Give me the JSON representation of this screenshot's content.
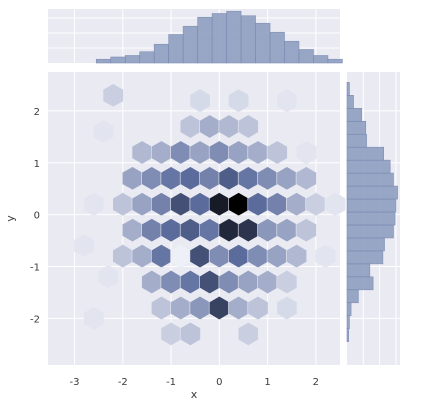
{
  "chart_data": {
    "type": "hexbin-jointplot",
    "title": "",
    "xlabel": "x",
    "ylabel": "y",
    "x_ticks": [
      -3,
      -2,
      -1,
      0,
      1,
      2
    ],
    "y_ticks": [
      -2,
      -1,
      0,
      1,
      2
    ],
    "xlim": [
      -3.55,
      2.5
    ],
    "ylim": [
      -2.9,
      2.75
    ],
    "grid": true,
    "background": "#eaeaf2",
    "colors": {
      "grid": "#ffffff",
      "low": "#eef0f7",
      "high": "#000000",
      "mid": "#5a6b9c",
      "histogram": "#8d9fc0",
      "histogram_edge": "#7586b0"
    },
    "hexbin": {
      "gridsize_x": 21,
      "counts": [
        {
          "x": -2.2,
          "y": 2.3,
          "c": 0.15
        },
        {
          "x": -2.4,
          "y": 1.6,
          "c": 0.05
        },
        {
          "x": -2.6,
          "y": 0.2,
          "c": 0.05
        },
        {
          "x": -2.8,
          "y": -0.6,
          "c": 0.05
        },
        {
          "x": -2.3,
          "y": -1.2,
          "c": 0.05
        },
        {
          "x": -2.6,
          "y": -2.0,
          "c": 0.05
        },
        {
          "x": -1.6,
          "y": 1.2,
          "c": 0.25
        },
        {
          "x": -1.2,
          "y": 1.2,
          "c": 0.3
        },
        {
          "x": -0.8,
          "y": 1.2,
          "c": 0.45
        },
        {
          "x": -0.4,
          "y": 1.2,
          "c": 0.35
        },
        {
          "x": 0.0,
          "y": 1.2,
          "c": 0.45
        },
        {
          "x": 0.4,
          "y": 1.2,
          "c": 0.35
        },
        {
          "x": 0.8,
          "y": 1.2,
          "c": 0.3
        },
        {
          "x": 1.2,
          "y": 1.2,
          "c": 0.2
        },
        {
          "x": -0.6,
          "y": 1.7,
          "c": 0.2
        },
        {
          "x": -0.2,
          "y": 1.7,
          "c": 0.3
        },
        {
          "x": 0.2,
          "y": 1.7,
          "c": 0.25
        },
        {
          "x": 0.6,
          "y": 1.7,
          "c": 0.2
        },
        {
          "x": -0.4,
          "y": 2.2,
          "c": 0.1
        },
        {
          "x": 0.4,
          "y": 2.2,
          "c": 0.1
        },
        {
          "x": 1.4,
          "y": 2.2,
          "c": 0.05
        },
        {
          "x": -1.8,
          "y": 0.7,
          "c": 0.35
        },
        {
          "x": -1.4,
          "y": 0.7,
          "c": 0.45
        },
        {
          "x": -1.0,
          "y": 0.7,
          "c": 0.55
        },
        {
          "x": -0.6,
          "y": 0.7,
          "c": 0.6
        },
        {
          "x": -0.2,
          "y": 0.7,
          "c": 0.5
        },
        {
          "x": 0.2,
          "y": 0.7,
          "c": 0.65
        },
        {
          "x": 0.6,
          "y": 0.7,
          "c": 0.55
        },
        {
          "x": 1.0,
          "y": 0.7,
          "c": 0.45
        },
        {
          "x": 1.4,
          "y": 0.7,
          "c": 0.35
        },
        {
          "x": 1.8,
          "y": 0.7,
          "c": 0.25
        },
        {
          "x": -2.0,
          "y": 0.2,
          "c": 0.2
        },
        {
          "x": -1.6,
          "y": 0.2,
          "c": 0.35
        },
        {
          "x": -1.2,
          "y": 0.2,
          "c": 0.5
        },
        {
          "x": -0.8,
          "y": 0.2,
          "c": 0.7
        },
        {
          "x": -0.4,
          "y": 0.2,
          "c": 0.6
        },
        {
          "x": 0.0,
          "y": 0.2,
          "c": 0.9
        },
        {
          "x": 0.4,
          "y": 0.2,
          "c": 1.0
        },
        {
          "x": 0.8,
          "y": 0.2,
          "c": 0.6
        },
        {
          "x": 1.2,
          "y": 0.2,
          "c": 0.5
        },
        {
          "x": 1.6,
          "y": 0.2,
          "c": 0.3
        },
        {
          "x": 2.0,
          "y": 0.2,
          "c": 0.15
        },
        {
          "x": -1.8,
          "y": -0.3,
          "c": 0.3
        },
        {
          "x": -1.4,
          "y": -0.3,
          "c": 0.5
        },
        {
          "x": -1.0,
          "y": -0.3,
          "c": 0.6
        },
        {
          "x": -0.6,
          "y": -0.3,
          "c": 0.65
        },
        {
          "x": -0.2,
          "y": -0.3,
          "c": 0.55
        },
        {
          "x": 0.2,
          "y": -0.3,
          "c": 0.85
        },
        {
          "x": 0.6,
          "y": -0.3,
          "c": 0.8
        },
        {
          "x": 1.0,
          "y": -0.3,
          "c": 0.4
        },
        {
          "x": 1.4,
          "y": -0.3,
          "c": 0.35
        },
        {
          "x": 1.8,
          "y": -0.3,
          "c": 0.2
        },
        {
          "x": -2.0,
          "y": -0.8,
          "c": 0.2
        },
        {
          "x": -1.6,
          "y": -0.8,
          "c": 0.3
        },
        {
          "x": -1.2,
          "y": -0.8,
          "c": 0.55
        },
        {
          "x": -0.8,
          "y": -0.8,
          "c": 0.0
        },
        {
          "x": -0.4,
          "y": -0.8,
          "c": 0.7
        },
        {
          "x": 0.0,
          "y": -0.8,
          "c": 0.45
        },
        {
          "x": 0.4,
          "y": -0.8,
          "c": 0.6
        },
        {
          "x": 0.8,
          "y": -0.8,
          "c": 0.45
        },
        {
          "x": 1.2,
          "y": -0.8,
          "c": 0.35
        },
        {
          "x": 1.6,
          "y": -0.8,
          "c": 0.25
        },
        {
          "x": -1.4,
          "y": -1.3,
          "c": 0.3
        },
        {
          "x": -1.0,
          "y": -1.3,
          "c": 0.45
        },
        {
          "x": -0.6,
          "y": -1.3,
          "c": 0.55
        },
        {
          "x": -0.2,
          "y": -1.3,
          "c": 0.7
        },
        {
          "x": 0.2,
          "y": -1.3,
          "c": 0.45
        },
        {
          "x": 0.6,
          "y": -1.3,
          "c": 0.35
        },
        {
          "x": 1.0,
          "y": -1.3,
          "c": 0.3
        },
        {
          "x": 1.4,
          "y": -1.3,
          "c": 0.15
        },
        {
          "x": -1.2,
          "y": -1.8,
          "c": 0.2
        },
        {
          "x": -0.8,
          "y": -1.8,
          "c": 0.3
        },
        {
          "x": -0.4,
          "y": -1.8,
          "c": 0.4
        },
        {
          "x": 0.0,
          "y": -1.8,
          "c": 0.75
        },
        {
          "x": 0.4,
          "y": -1.8,
          "c": 0.3
        },
        {
          "x": 0.8,
          "y": -1.8,
          "c": 0.2
        },
        {
          "x": -1.0,
          "y": -2.3,
          "c": 0.15
        },
        {
          "x": -0.6,
          "y": -2.3,
          "c": 0.2
        },
        {
          "x": 0.6,
          "y": -2.3,
          "c": 0.15
        },
        {
          "x": 1.4,
          "y": -1.8,
          "c": 0.1
        },
        {
          "x": 2.2,
          "y": -0.8,
          "c": 0.05
        },
        {
          "x": 2.4,
          "y": 0.2,
          "c": 0.05
        },
        {
          "x": 1.8,
          "y": 1.2,
          "c": 0.05
        }
      ]
    },
    "marginal_x": {
      "bins": [
        -2.55,
        -2.25,
        -1.95,
        -1.65,
        -1.35,
        -1.05,
        -0.75,
        -0.45,
        -0.15,
        0.15,
        0.45,
        0.75,
        1.05,
        1.35,
        1.65,
        1.95,
        2.25,
        2.55
      ],
      "values": [
        5,
        8,
        10,
        15,
        25,
        38,
        49,
        61,
        66,
        69,
        63,
        53,
        41,
        29,
        18,
        10,
        5
      ]
    },
    "marginal_y": {
      "bins": [
        -2.45,
        -2.2,
        -1.95,
        -1.7,
        -1.45,
        -1.2,
        -0.95,
        -0.7,
        -0.45,
        -0.2,
        0.05,
        0.3,
        0.55,
        0.8,
        1.05,
        1.3,
        1.55,
        1.8,
        2.05,
        2.3,
        2.55
      ],
      "values": [
        2,
        3,
        5,
        14,
        32,
        28,
        44,
        46,
        57,
        59,
        60,
        62,
        57,
        53,
        45,
        24,
        23,
        18,
        8,
        3
      ]
    }
  }
}
